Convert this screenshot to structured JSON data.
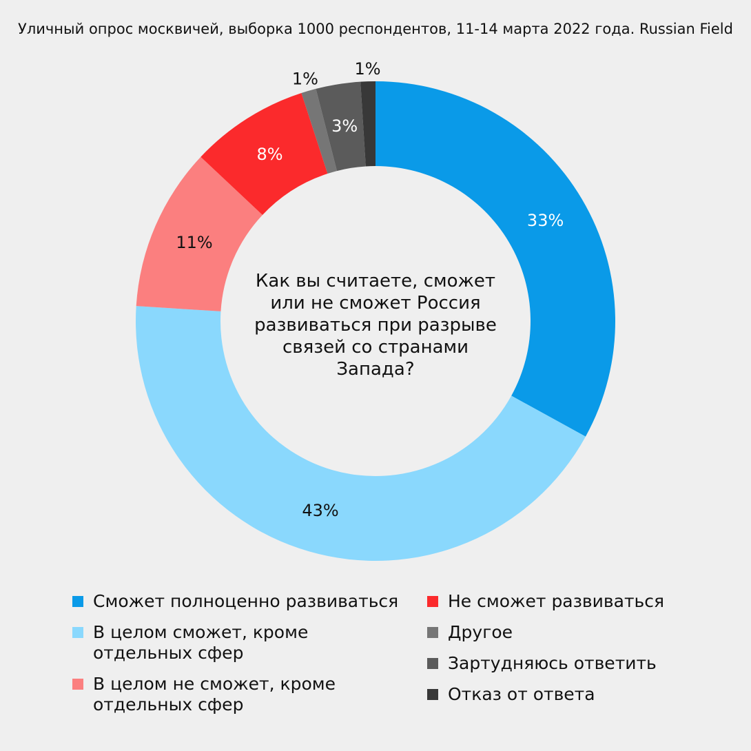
{
  "subtitle": "Уличный опрос москвичей, выборка 1000 респондентов, 11-14 марта 2022 года. Russian Field",
  "chart_data": {
    "type": "pie",
    "variant": "donut",
    "title": "Как вы считаете, сможет\nили не сможет Россия\nразвиваться при разрыве\nсвязей со странами\nЗапада?",
    "labels": [
      "Сможет полноценно развиваться",
      "В целом сможет, кроме\nотдельных сфер",
      "В целом не сможет, кроме\nотдельных сфер",
      "Не сможет развиваться",
      "Другое",
      "Зартудняюсь ответить",
      "Отказ от ответа"
    ],
    "values": [
      33,
      43,
      11,
      8,
      1,
      3,
      1
    ],
    "value_labels": [
      "33%",
      "43%",
      "11%",
      "8%",
      "1%",
      "3%",
      "1%"
    ],
    "colors": [
      "#0a9ae8",
      "#8ad8fd",
      "#fb7f7f",
      "#fb2a2c",
      "#767676",
      "#5b5b5b",
      "#383838"
    ],
    "label_colors": [
      "#ffffff",
      "#111111",
      "#111111",
      "#ffffff",
      "#111111",
      "#ffffff",
      "#111111"
    ],
    "label_outside": [
      false,
      false,
      false,
      false,
      true,
      false,
      true
    ],
    "start_angle_deg": 0,
    "direction": "clockwise",
    "legend_position": "bottom"
  }
}
